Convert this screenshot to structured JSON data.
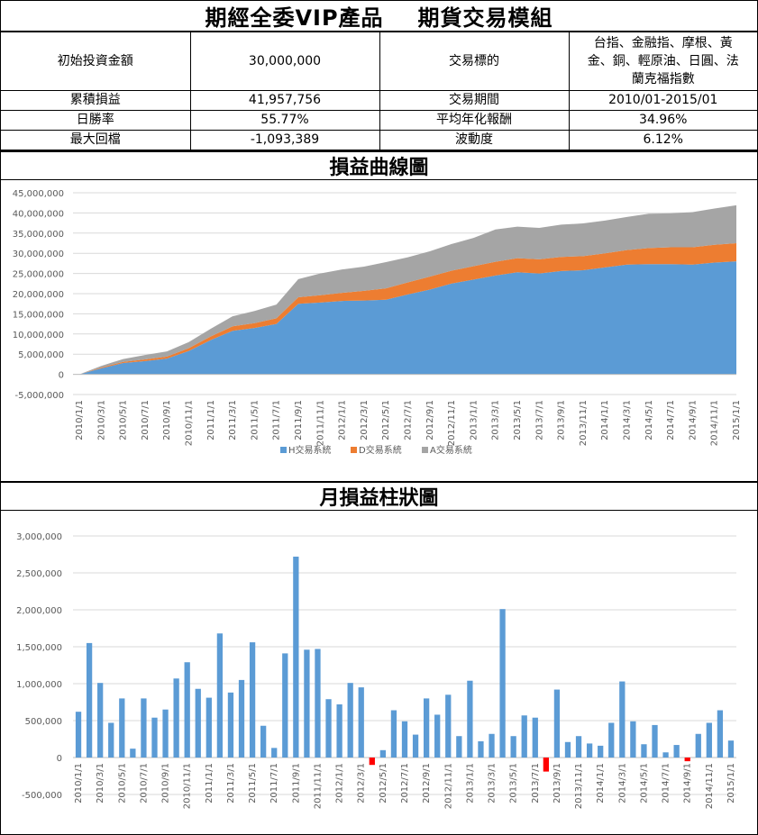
{
  "header": {
    "title_left": "期經全委VIP產品",
    "title_right": "期貨交易模組"
  },
  "info": {
    "initial_label": "初始投資金額",
    "initial_value": "30,000,000",
    "target_label": "交易標的",
    "target_value_lines": [
      "台指、金融指、摩根、黃",
      "金、銅、輕原油、日圓、法",
      "蘭克福指數"
    ],
    "cum_label": "累積損益",
    "cum_value": "41,957,756",
    "period_label": "交易期間",
    "period_value": "2010/01-2015/01",
    "winrate_label": "日勝率",
    "winrate_value": "55.77%",
    "annual_label": "平均年化報酬",
    "annual_value": "34.96%",
    "dd_label": "最大回檔",
    "dd_value": "-1,093,389",
    "vol_label": "波動度",
    "vol_value": "6.12%"
  },
  "chart1_title": "損益曲線圖",
  "chart2_title": "月損益柱狀圖",
  "colors": {
    "H": "#5b9bd5",
    "D": "#ed7d31",
    "A": "#a5a5a5",
    "neg": "#ff0000",
    "grid": "#d9d9d9",
    "axis": "#595959"
  },
  "chart_data": [
    {
      "type": "area",
      "stacked": true,
      "title": "損益曲線圖",
      "ylim": [
        -5000000,
        45000000
      ],
      "yticks": [
        -5000000,
        0,
        5000000,
        10000000,
        15000000,
        20000000,
        25000000,
        30000000,
        35000000,
        40000000,
        45000000
      ],
      "ytick_labels": [
        "-5,000,000",
        "0",
        "5,000,000",
        "10,000,000",
        "15,000,000",
        "20,000,000",
        "25,000,000",
        "30,000,000",
        "35,000,000",
        "40,000,000",
        "45,000,000"
      ],
      "grid": true,
      "legend": "bottom",
      "x_labels": [
        "2010/1/1",
        "2010/3/1",
        "2010/5/1",
        "2010/7/1",
        "2010/9/1",
        "2010/11/1",
        "2011/1/1",
        "2011/3/1",
        "2011/5/1",
        "2011/7/1",
        "2011/9/1",
        "2011/11/1",
        "2012/1/1",
        "2012/3/1",
        "2012/5/1",
        "2012/7/1",
        "2012/9/1",
        "2012/11/1",
        "2013/1/1",
        "2013/3/1",
        "2013/5/1",
        "2013/7/1",
        "2013/9/1",
        "2013/11/1",
        "2014/1/1",
        "2014/3/1",
        "2014/5/1",
        "2014/7/1",
        "2014/9/1",
        "2014/11/1",
        "2015/1/1"
      ],
      "series": [
        {
          "name": "H交易系統",
          "values": [
            0,
            1500000,
            2800000,
            3300000,
            3900000,
            5800000,
            8500000,
            10800000,
            11500000,
            12500000,
            17500000,
            17800000,
            18200000,
            18300000,
            18500000,
            19800000,
            21000000,
            22500000,
            23500000,
            24500000,
            25300000,
            25000000,
            25600000,
            25800000,
            26500000,
            27200000,
            27300000,
            27300000,
            27200000,
            27700000,
            28000000
          ]
        },
        {
          "name": "D交易系統",
          "values": [
            0,
            200000,
            300000,
            400000,
            500000,
            700000,
            900000,
            1100000,
            1200000,
            1400000,
            1600000,
            1800000,
            2000000,
            2400000,
            2800000,
            3000000,
            3200000,
            3200000,
            3300000,
            3400000,
            3500000,
            3500000,
            3500000,
            3500000,
            3500000,
            3600000,
            4000000,
            4200000,
            4300000,
            4400000,
            4500000
          ]
        },
        {
          "name": "A交易系統",
          "values": [
            0,
            400000,
            700000,
            1100000,
            1300000,
            1500000,
            1900000,
            2500000,
            3000000,
            3400000,
            4500000,
            5400000,
            5800000,
            6000000,
            6500000,
            6200000,
            6300000,
            6600000,
            7000000,
            8000000,
            7800000,
            7800000,
            8000000,
            8100000,
            8100000,
            8200000,
            8500000,
            8400000,
            8700000,
            9000000,
            9400000
          ]
        }
      ]
    },
    {
      "type": "bar",
      "title": "月損益柱狀圖",
      "ylim": [
        -500000,
        3000000
      ],
      "yticks": [
        -500000,
        0,
        500000,
        1000000,
        1500000,
        2000000,
        2500000,
        3000000
      ],
      "ytick_labels": [
        "-500,000",
        "0",
        "500,000",
        "1,000,000",
        "1,500,000",
        "2,000,000",
        "2,500,000",
        "3,000,000"
      ],
      "grid": true,
      "x_labels": [
        "2010/1/1",
        "2010/3/1",
        "2010/5/1",
        "2010/7/1",
        "2010/9/1",
        "2010/11/1",
        "2011/1/1",
        "2011/3/1",
        "2011/5/1",
        "2011/7/1",
        "2011/9/1",
        "2011/11/1",
        "2012/1/1",
        "2012/3/1",
        "2012/5/1",
        "2012/7/1",
        "2012/9/1",
        "2012/11/1",
        "2013/1/1",
        "2013/3/1",
        "2013/5/1",
        "2013/7/1",
        "2013/9/1",
        "2013/11/1",
        "2014/1/1",
        "2014/3/1",
        "2014/5/1",
        "2014/7/1",
        "2014/9/1",
        "2014/11/1",
        "2015/1/1"
      ],
      "values": [
        620000,
        1550000,
        1010000,
        470000,
        800000,
        120000,
        800000,
        540000,
        650000,
        1070000,
        1290000,
        930000,
        810000,
        1680000,
        880000,
        1050000,
        1560000,
        430000,
        130000,
        1410000,
        2720000,
        1460000,
        1470000,
        790000,
        720000,
        1010000,
        950000,
        -100000,
        100000,
        640000,
        490000,
        310000,
        800000,
        580000,
        850000,
        290000,
        1040000,
        220000,
        320000,
        2010000,
        290000,
        570000,
        540000,
        -190000,
        920000,
        210000,
        290000,
        190000,
        160000,
        470000,
        1030000,
        490000,
        180000,
        440000,
        70000,
        170000,
        -50000,
        320000,
        470000,
        640000,
        230000
      ]
    }
  ]
}
